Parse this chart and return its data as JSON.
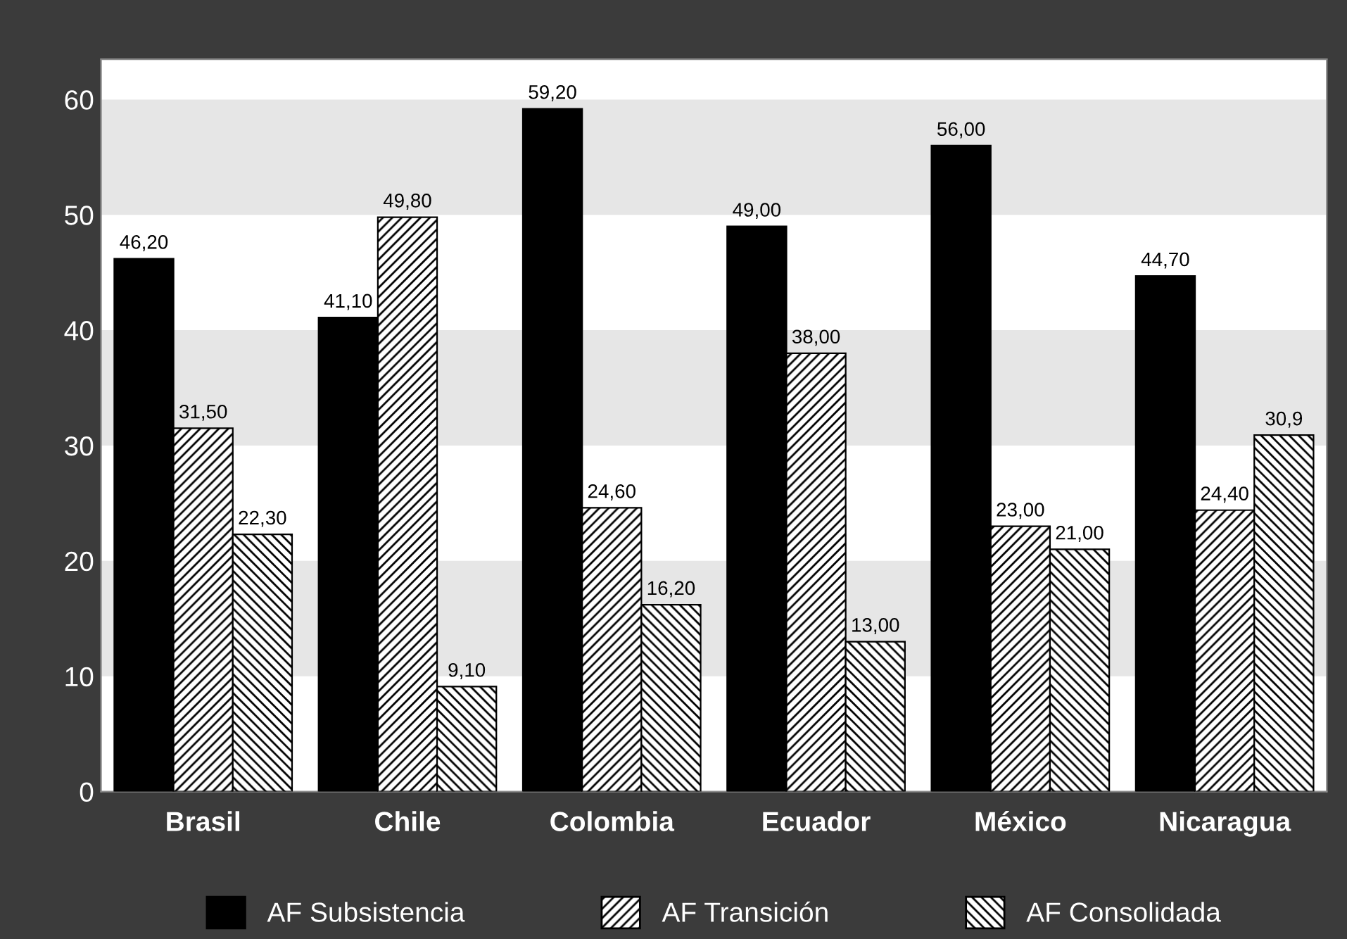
{
  "chart_data": {
    "type": "bar",
    "categories": [
      "Brasil",
      "Chile",
      "Colombia",
      "Ecuador",
      "México",
      "Nicaragua"
    ],
    "series": [
      {
        "name": "AF Subsistencia",
        "color": "#000000",
        "values": [
          46.2,
          41.1,
          59.2,
          49.0,
          56.0,
          44.7
        ],
        "value_labels": [
          "46,20",
          "41,10",
          "59,20",
          "49,00",
          "56,00",
          "44,70"
        ]
      },
      {
        "name": "AF Transición",
        "color": "#000000",
        "values": [
          31.5,
          49.8,
          24.6,
          38.0,
          23.0,
          24.4
        ],
        "value_labels": [
          "31,50",
          "49,80",
          "24,60",
          "38,00",
          "23,00",
          "24,40"
        ]
      },
      {
        "name": "AF Consolidada",
        "color": "#000000",
        "values": [
          22.3,
          9.1,
          16.2,
          13.0,
          21.0,
          30.9
        ],
        "value_labels": [
          "22,30",
          "9,10",
          "16,20",
          "13,00",
          "21,00",
          "30,9"
        ]
      }
    ],
    "ylim": [
      0,
      63.5
    ],
    "yticks": [
      0,
      10,
      20,
      30,
      40,
      50,
      60
    ],
    "bands": [
      {
        "axis": "y",
        "from": 10,
        "to": 20,
        "color": "#e6e6e6"
      },
      {
        "axis": "y",
        "from": 30,
        "to": 40,
        "color": "#e6e6e6"
      },
      {
        "axis": "y",
        "from": 50,
        "to": 60,
        "color": "#e6e6e6"
      }
    ],
    "legend": "bottom"
  }
}
